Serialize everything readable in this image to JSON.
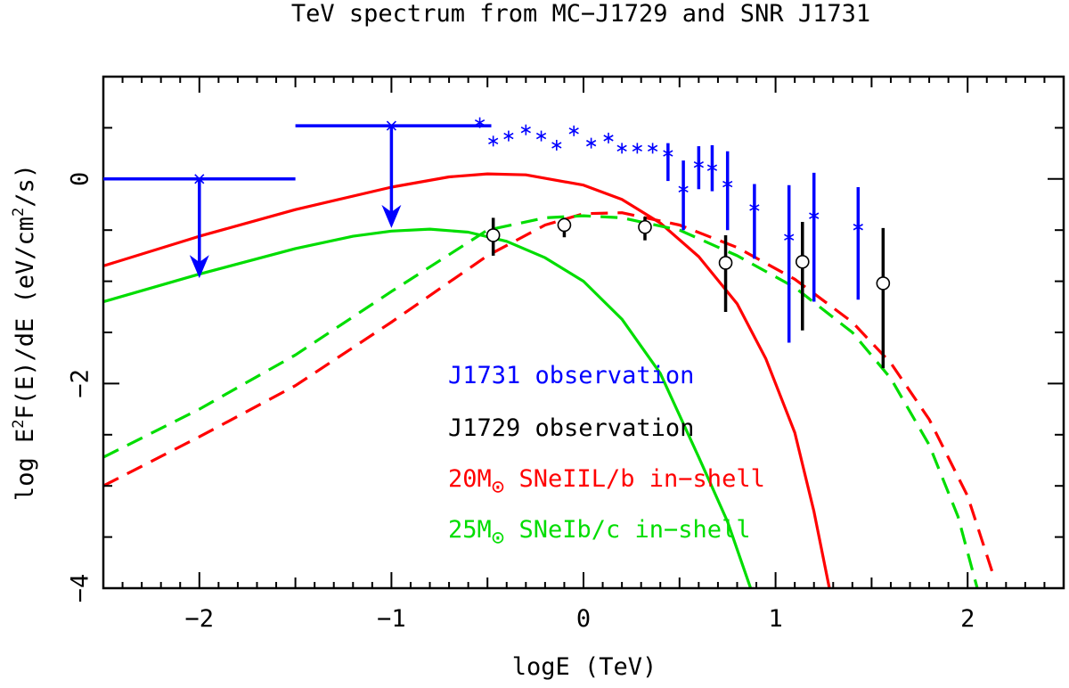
{
  "chart_data": {
    "type": "line",
    "title": "TeV spectrum from MC−J1729 and SNR J1731",
    "xlabel": "logE (TeV)",
    "ylabel_parts": {
      "pre": "log E",
      "sup1": "2",
      "mid": "F(E)/dE (eV/cm",
      "sup2": "2",
      "post": "/s)"
    },
    "xlim": [
      -2.5,
      2.5
    ],
    "ylim": [
      -4,
      1
    ],
    "x_ticks": [
      -2,
      -1,
      0,
      1,
      2
    ],
    "y_ticks": [
      -4,
      -2,
      0
    ],
    "x_tick_labels": [
      "−2",
      "−1",
      "0",
      "1",
      "2"
    ],
    "y_tick_labels": [
      "−4",
      "−2",
      "0"
    ],
    "legend": {
      "position": "bottom-center",
      "entries": [
        {
          "text": "J1731 observation",
          "color": "#0000ff"
        },
        {
          "text": "J1729 observation",
          "color": "#000000"
        },
        {
          "pre": "20M",
          "post": " SNeIIL/b in−shell",
          "color": "#ff0000"
        },
        {
          "pre": "25M",
          "post": " SNeIb/c in−shell",
          "color": "#00dd00"
        }
      ]
    },
    "colors": {
      "blue": "#0000ff",
      "black": "#000000",
      "red": "#ff0000",
      "green": "#00dd00"
    },
    "series": [
      {
        "style": "solid",
        "color": "#ff0000",
        "x": [
          -2.5,
          -2.0,
          -1.5,
          -1.0,
          -0.7,
          -0.5,
          -0.3,
          0.0,
          0.2,
          0.4,
          0.6,
          0.8,
          0.95,
          1.1,
          1.2,
          1.28
        ],
        "y": [
          -0.85,
          -0.56,
          -0.3,
          -0.08,
          0.02,
          0.05,
          0.04,
          -0.06,
          -0.2,
          -0.43,
          -0.76,
          -1.22,
          -1.76,
          -2.48,
          -3.25,
          -4.0
        ]
      },
      {
        "style": "dashed",
        "color": "#ff0000",
        "x": [
          -2.5,
          -2.0,
          -1.5,
          -1.0,
          -0.5,
          -0.2,
          0.0,
          0.2,
          0.5,
          0.8,
          1.1,
          1.4,
          1.6,
          1.8,
          2.0,
          2.13
        ],
        "y": [
          -3.0,
          -2.52,
          -2.02,
          -1.4,
          -0.75,
          -0.45,
          -0.34,
          -0.33,
          -0.45,
          -0.67,
          -0.98,
          -1.4,
          -1.8,
          -2.35,
          -3.1,
          -3.85
        ]
      },
      {
        "style": "solid",
        "color": "#00dd00",
        "x": [
          -2.5,
          -2.0,
          -1.5,
          -1.2,
          -1.0,
          -0.8,
          -0.6,
          -0.4,
          -0.2,
          0.0,
          0.2,
          0.4,
          0.6,
          0.75,
          0.87
        ],
        "y": [
          -1.2,
          -0.93,
          -0.68,
          -0.56,
          -0.51,
          -0.49,
          -0.52,
          -0.61,
          -0.77,
          -1.0,
          -1.37,
          -1.9,
          -2.72,
          -3.35,
          -4.0
        ]
      },
      {
        "style": "dashed",
        "color": "#00dd00",
        "x": [
          -2.5,
          -2.0,
          -1.5,
          -1.0,
          -0.5,
          -0.2,
          0.0,
          0.2,
          0.5,
          0.8,
          1.1,
          1.4,
          1.6,
          1.8,
          1.95,
          2.05
        ],
        "y": [
          -2.72,
          -2.25,
          -1.72,
          -1.1,
          -0.5,
          -0.38,
          -0.36,
          -0.38,
          -0.5,
          -0.75,
          -1.06,
          -1.5,
          -1.95,
          -2.6,
          -3.3,
          -4.0
        ]
      },
      {
        "name": "J1731 observation",
        "style": "asterisks",
        "color": "#0000ff",
        "x": [
          -0.54,
          -0.47,
          -0.39,
          -0.3,
          -0.22,
          -0.14,
          -0.05,
          0.04,
          0.13,
          0.2,
          0.28,
          0.36,
          0.44,
          0.52,
          0.6,
          0.67,
          0.75,
          0.89,
          1.07,
          1.2,
          1.43
        ],
        "y": [
          0.55,
          0.37,
          0.42,
          0.48,
          0.42,
          0.33,
          0.47,
          0.35,
          0.4,
          0.3,
          0.3,
          0.3,
          0.25,
          -0.1,
          0.14,
          0.11,
          -0.05,
          -0.28,
          -0.57,
          -0.36,
          -0.47
        ],
        "err_low": [
          null,
          null,
          null,
          null,
          null,
          null,
          null,
          null,
          null,
          null,
          null,
          null,
          -0.02,
          -0.5,
          -0.1,
          -0.12,
          -0.5,
          -0.78,
          -1.6,
          -1.2,
          -1.18
        ],
        "err_high": [
          null,
          null,
          null,
          null,
          null,
          null,
          null,
          null,
          null,
          null,
          null,
          null,
          0.35,
          0.18,
          0.32,
          0.33,
          0.27,
          -0.05,
          -0.06,
          0.06,
          -0.08
        ]
      },
      {
        "name": "J1729 observation",
        "style": "circles",
        "color": "#000000",
        "x": [
          -0.47,
          -0.1,
          0.32,
          0.74,
          1.14,
          1.56
        ],
        "y": [
          -0.55,
          -0.45,
          -0.47,
          -0.82,
          -0.81,
          -1.02
        ],
        "err_low": [
          -0.75,
          -0.57,
          -0.6,
          -1.3,
          -1.48,
          -1.85
        ],
        "err_high": [
          -0.38,
          -0.38,
          -0.37,
          -0.55,
          -0.42,
          -0.48
        ]
      },
      {
        "name": "J1731 upper limits",
        "style": "upper_limits",
        "color": "#0000ff",
        "x": [
          -2.0,
          -1.0
        ],
        "y": [
          0.0,
          0.52
        ],
        "x_low": [
          -2.5,
          -1.5
        ],
        "x_high": [
          -1.5,
          -0.48
        ],
        "arrow_to": [
          -0.97,
          -0.48
        ]
      }
    ]
  }
}
